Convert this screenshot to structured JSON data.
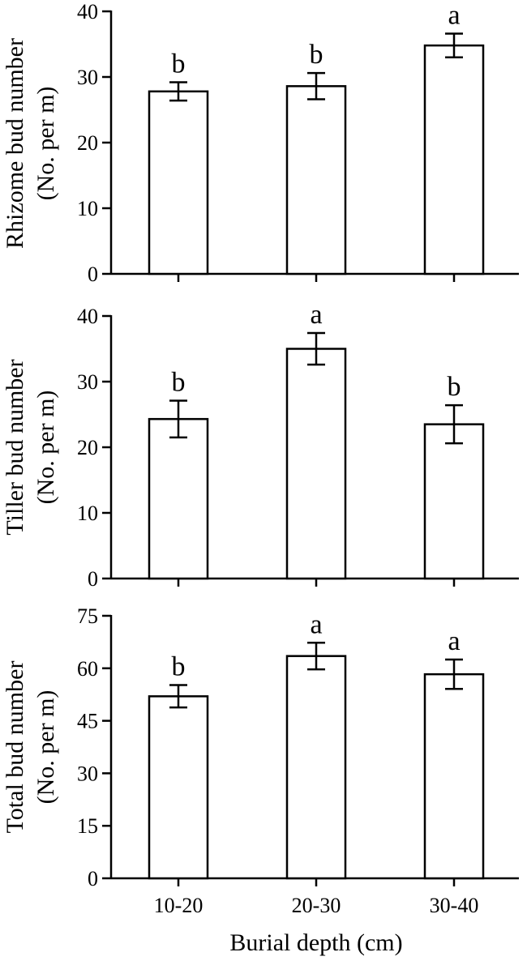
{
  "chart_data": [
    {
      "type": "bar",
      "ylabel_line1": "Rhizome bud number",
      "ylabel_line2": "(No. per m)",
      "categories": [
        "10-20",
        "20-30",
        "30-40"
      ],
      "values": [
        27.8,
        28.6,
        34.8
      ],
      "errors": [
        1.4,
        2.0,
        1.8
      ],
      "letters": [
        "b",
        "b",
        "a"
      ],
      "ylim": [
        0,
        40
      ],
      "yticks": [
        0,
        10,
        20,
        30,
        40
      ]
    },
    {
      "type": "bar",
      "ylabel_line1": "Tiller bud number",
      "ylabel_line2": "(No. per m)",
      "categories": [
        "10-20",
        "20-30",
        "30-40"
      ],
      "values": [
        24.3,
        35.0,
        23.5
      ],
      "errors": [
        2.8,
        2.4,
        2.9
      ],
      "letters": [
        "b",
        "a",
        "b"
      ],
      "ylim": [
        0,
        40
      ],
      "yticks": [
        0,
        10,
        20,
        30,
        40
      ]
    },
    {
      "type": "bar",
      "ylabel_line1": "Total bud number",
      "ylabel_line2": "(No. per m)",
      "categories": [
        "10-20",
        "20-30",
        "30-40"
      ],
      "values": [
        52.0,
        63.5,
        58.3
      ],
      "errors": [
        3.2,
        3.8,
        4.2
      ],
      "letters": [
        "b",
        "a",
        "a"
      ],
      "ylim": [
        0,
        75
      ],
      "yticks": [
        0,
        15,
        30,
        45,
        60,
        75
      ],
      "xlabel": "Burial depth (cm)"
    }
  ]
}
